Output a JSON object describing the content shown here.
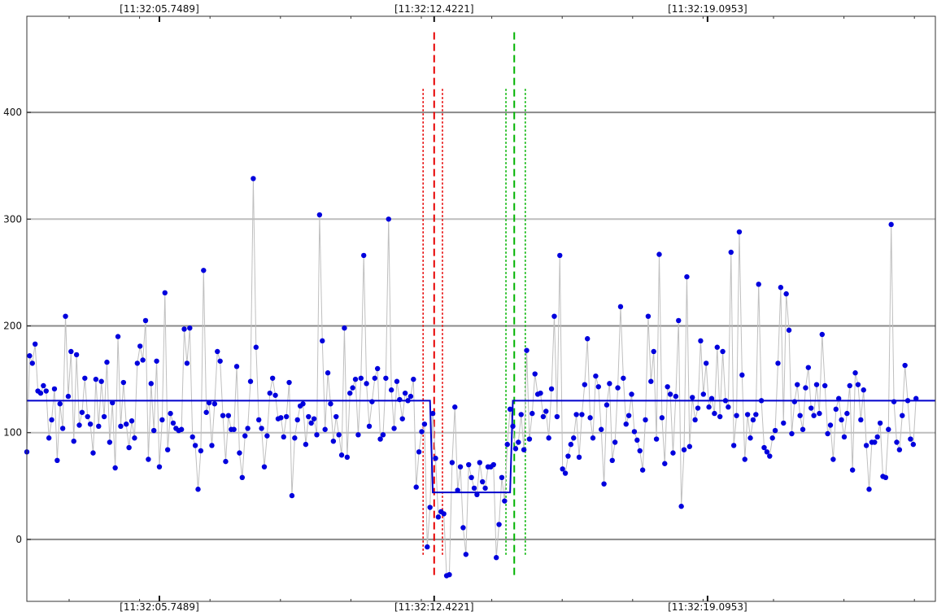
{
  "chart_data": {
    "type": "scatter",
    "x_ticks": [
      "[11:32:05.7489]",
      "[11:32:12.4221]",
      "[11:32:19.0953]"
    ],
    "y_ticks": [
      "0",
      "100",
      "200",
      "300",
      "400"
    ],
    "ylim": [
      -58,
      490
    ],
    "xlim": [
      0,
      329
    ],
    "grid": true,
    "step_line": {
      "color": "#0000cc",
      "points": [
        [
          0,
          130
        ],
        [
          146,
          130
        ],
        [
          147,
          44
        ],
        [
          175,
          44
        ],
        [
          176,
          130
        ],
        [
          329,
          130
        ]
      ]
    },
    "markers": [
      {
        "name": "red-dashed-marker",
        "x": 147.5,
        "style": "dashed",
        "color": "#e60000",
        "top": 475,
        "bottom": -35
      },
      {
        "name": "red-dotted-marker-left",
        "x": 143.5,
        "style": "dotted",
        "color": "#e60000",
        "top": 422,
        "bottom": -15
      },
      {
        "name": "red-dotted-marker-right",
        "x": 150.5,
        "style": "dotted",
        "color": "#e60000",
        "top": 422,
        "bottom": -15
      },
      {
        "name": "green-dashed-marker",
        "x": 176.5,
        "style": "dashed",
        "color": "#00b300",
        "top": 475,
        "bottom": -35
      },
      {
        "name": "green-dotted-marker-left",
        "x": 173.5,
        "style": "dotted",
        "color": "#00b300",
        "top": 422,
        "bottom": -15
      },
      {
        "name": "green-dotted-marker-right",
        "x": 180.5,
        "style": "dotted",
        "color": "#00b300",
        "top": 422,
        "bottom": -15
      }
    ],
    "series": [
      {
        "color": "#0000dd",
        "values": [
          82,
          172,
          165,
          183,
          139,
          137,
          144,
          139,
          95,
          112,
          141,
          74,
          127,
          104,
          209,
          134,
          176,
          92,
          173,
          107,
          119,
          151,
          115,
          108,
          81,
          150,
          106,
          148,
          115,
          166,
          91,
          128,
          67,
          190,
          106,
          147,
          108,
          86,
          111,
          95,
          165,
          181,
          168,
          205,
          75,
          146,
          102,
          167,
          68,
          112,
          231,
          84,
          118,
          109,
          104,
          102,
          103,
          197,
          165,
          198,
          96,
          88,
          47,
          83,
          252,
          119,
          128,
          88,
          127,
          176,
          167,
          116,
          73,
          116,
          103,
          103,
          162,
          81,
          58,
          97,
          104,
          148,
          338,
          180,
          112,
          104,
          68,
          97,
          137,
          151,
          135,
          113,
          114,
          96,
          115,
          147,
          41,
          95,
          112,
          125,
          127,
          89,
          115,
          109,
          113,
          98,
          304,
          186,
          103,
          156,
          127,
          92,
          115,
          98,
          79,
          198,
          77,
          137,
          142,
          150,
          98,
          151,
          266,
          146,
          106,
          129,
          151,
          160,
          94,
          98,
          151,
          300,
          140,
          104,
          148,
          131,
          113,
          137,
          130,
          134,
          150,
          49,
          82,
          101,
          108,
          -7,
          30,
          118,
          76,
          21,
          26,
          24,
          -34,
          -33,
          72,
          124,
          46,
          68,
          11,
          -14,
          70,
          58,
          48,
          42,
          72,
          54,
          48,
          68,
          68,
          70,
          -17,
          14,
          58,
          36,
          89,
          122,
          106,
          85,
          91,
          117,
          84,
          177,
          94,
          118,
          155,
          136,
          137,
          115,
          120,
          95,
          141,
          209,
          115,
          266,
          66,
          62,
          78,
          89,
          95,
          117,
          77,
          117,
          145,
          188,
          114,
          95,
          153,
          143,
          103,
          52,
          126,
          146,
          74,
          91,
          142,
          218,
          151,
          108,
          116,
          136,
          101,
          93,
          83,
          65,
          112,
          209,
          148,
          176,
          94,
          267,
          114,
          71,
          143,
          136,
          81,
          134,
          205,
          31,
          84,
          246,
          87,
          133,
          112,
          123,
          186,
          136,
          165,
          124,
          132,
          118,
          180,
          115,
          176,
          130,
          124,
          269,
          88,
          116,
          288,
          154,
          75,
          117,
          95,
          112,
          117,
          239,
          130,
          86,
          82,
          78,
          95,
          102,
          165,
          236,
          109,
          230,
          196,
          99,
          129,
          145,
          116,
          103,
          142,
          161,
          123,
          116,
          145,
          118,
          192,
          144,
          99,
          107,
          75,
          122,
          132,
          112,
          96,
          118,
          144,
          65,
          156,
          145,
          112,
          140,
          88,
          47,
          91,
          91,
          96,
          109,
          59,
          58,
          103,
          295,
          129,
          91,
          84,
          116,
          163,
          130,
          94,
          89,
          132
        ]
      }
    ]
  }
}
